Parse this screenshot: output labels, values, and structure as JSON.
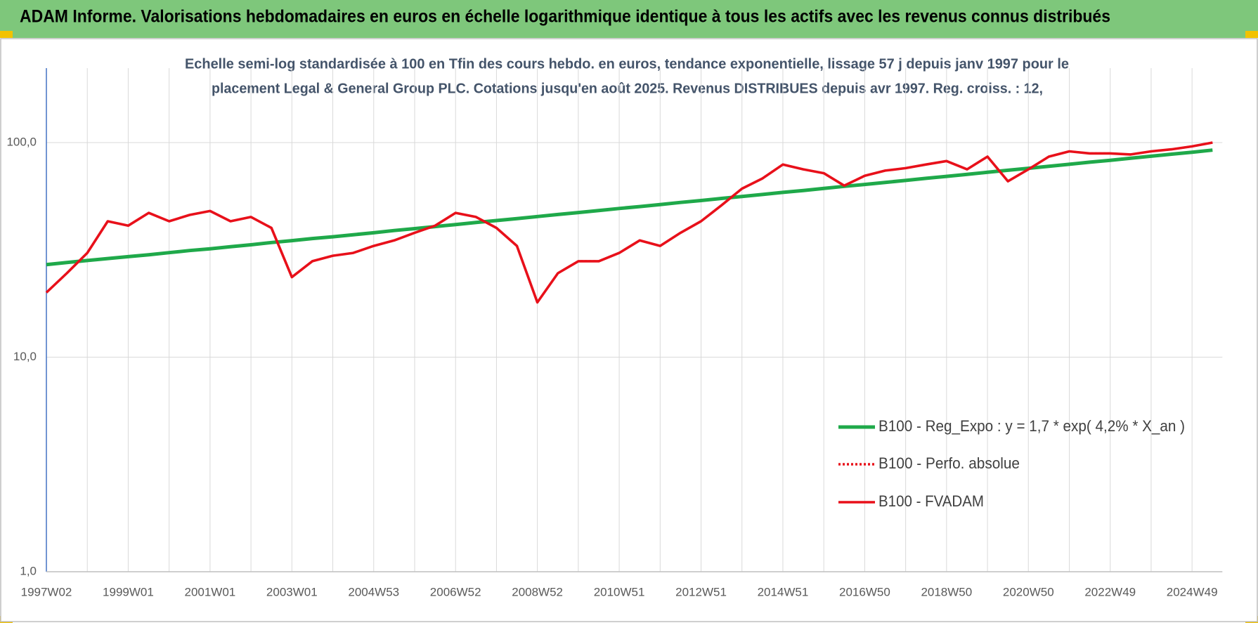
{
  "chart_data": {
    "type": "line",
    "title": "ADAM Informe. Valorisations hebdomadaires en euros en échelle logarithmique identique à tous les actifs avec les revenus connus distribués",
    "subtitle": [
      "Echelle semi-log standardisée à 100 en Tfin des cours hebdo. en euros, tendance exponentielle, lissage 57 j depuis janv 1997 pour le",
      "placement Legal & General Group PLC. Cotations jusqu'en août 2025. Revenus DISTRIBUES depuis avr 1997.  Reg. croiss. : 12,"
    ],
    "categories": [
      "1997W02",
      null,
      null,
      null,
      "1999W01",
      null,
      null,
      null,
      "2001W01",
      null,
      null,
      null,
      "2003W01",
      null,
      null,
      null,
      "2004W53",
      null,
      null,
      null,
      "2006W52",
      null,
      null,
      null,
      "2008W52",
      null,
      null,
      null,
      "2010W51",
      null,
      null,
      null,
      "2012W51",
      null,
      null,
      null,
      "2014W51",
      null,
      null,
      null,
      "2016W50",
      null,
      null,
      null,
      "2018W50",
      null,
      null,
      null,
      "2020W50",
      null,
      null,
      null,
      "2022W49",
      null,
      null,
      null,
      "2024W49",
      null
    ],
    "series": [
      {
        "name": "B100 - Reg_Expo : y = 1,7 * exp( 4,2% *  X_an )",
        "color": "#1fa94a",
        "style": "solid",
        "values": [
          27.0,
          27.6,
          28.2,
          28.8,
          29.4,
          30.0,
          30.7,
          31.4,
          32.0,
          32.7,
          33.4,
          34.2,
          34.9,
          35.7,
          36.4,
          37.2,
          38.0,
          38.9,
          39.7,
          40.6,
          41.5,
          42.4,
          43.3,
          44.2,
          45.2,
          46.2,
          47.2,
          48.2,
          49.3,
          50.3,
          51.4,
          52.6,
          53.7,
          54.9,
          56.1,
          57.3,
          58.6,
          59.8,
          61.1,
          62.5,
          63.8,
          65.2,
          66.6,
          68.1,
          69.6,
          71.1,
          72.7,
          74.3,
          75.9,
          77.5,
          79.2,
          81.0,
          82.7,
          84.5,
          86.4,
          88.3,
          90.2,
          92.2
        ]
      },
      {
        "name": "B100 - Perfo. absolue",
        "color": "#e8101a",
        "style": "dotted",
        "values": [
          20,
          24.6,
          30.6,
          43,
          41,
          47,
          43,
          46,
          48,
          43,
          45,
          40,
          23.6,
          28,
          29.7,
          30.6,
          33,
          35,
          38,
          41,
          47,
          45,
          40,
          33,
          18,
          24.6,
          28,
          28,
          30.6,
          35,
          33,
          38,
          43,
          51,
          61,
          68,
          79,
          75,
          72,
          63,
          70,
          74,
          76,
          79,
          82,
          75,
          86,
          66,
          75,
          86,
          91,
          89,
          89,
          88,
          91,
          93,
          96,
          100
        ]
      },
      {
        "name": "B100 - FVADAM",
        "color": "#e8101a",
        "style": "solid",
        "values": [
          20,
          24.6,
          30.6,
          43,
          41,
          47,
          43,
          46,
          48,
          43,
          45,
          40,
          23.6,
          28,
          29.7,
          30.6,
          33,
          35,
          38,
          41,
          47,
          45,
          40,
          33,
          18,
          24.6,
          28,
          28,
          30.6,
          35,
          33,
          38,
          43,
          51,
          61,
          68,
          79,
          75,
          72,
          63,
          70,
          74,
          76,
          79,
          82,
          75,
          86,
          66,
          75,
          86,
          91,
          89,
          89,
          88,
          91,
          93,
          96,
          100
        ]
      }
    ],
    "ylim": [
      1,
      200
    ],
    "yticks": [
      {
        "value": 1,
        "label": "1,0"
      },
      {
        "value": 10,
        "label": "10,0"
      },
      {
        "value": 100,
        "label": "100,0"
      }
    ],
    "log_scale": true,
    "grid": true,
    "legend": "lower right"
  }
}
